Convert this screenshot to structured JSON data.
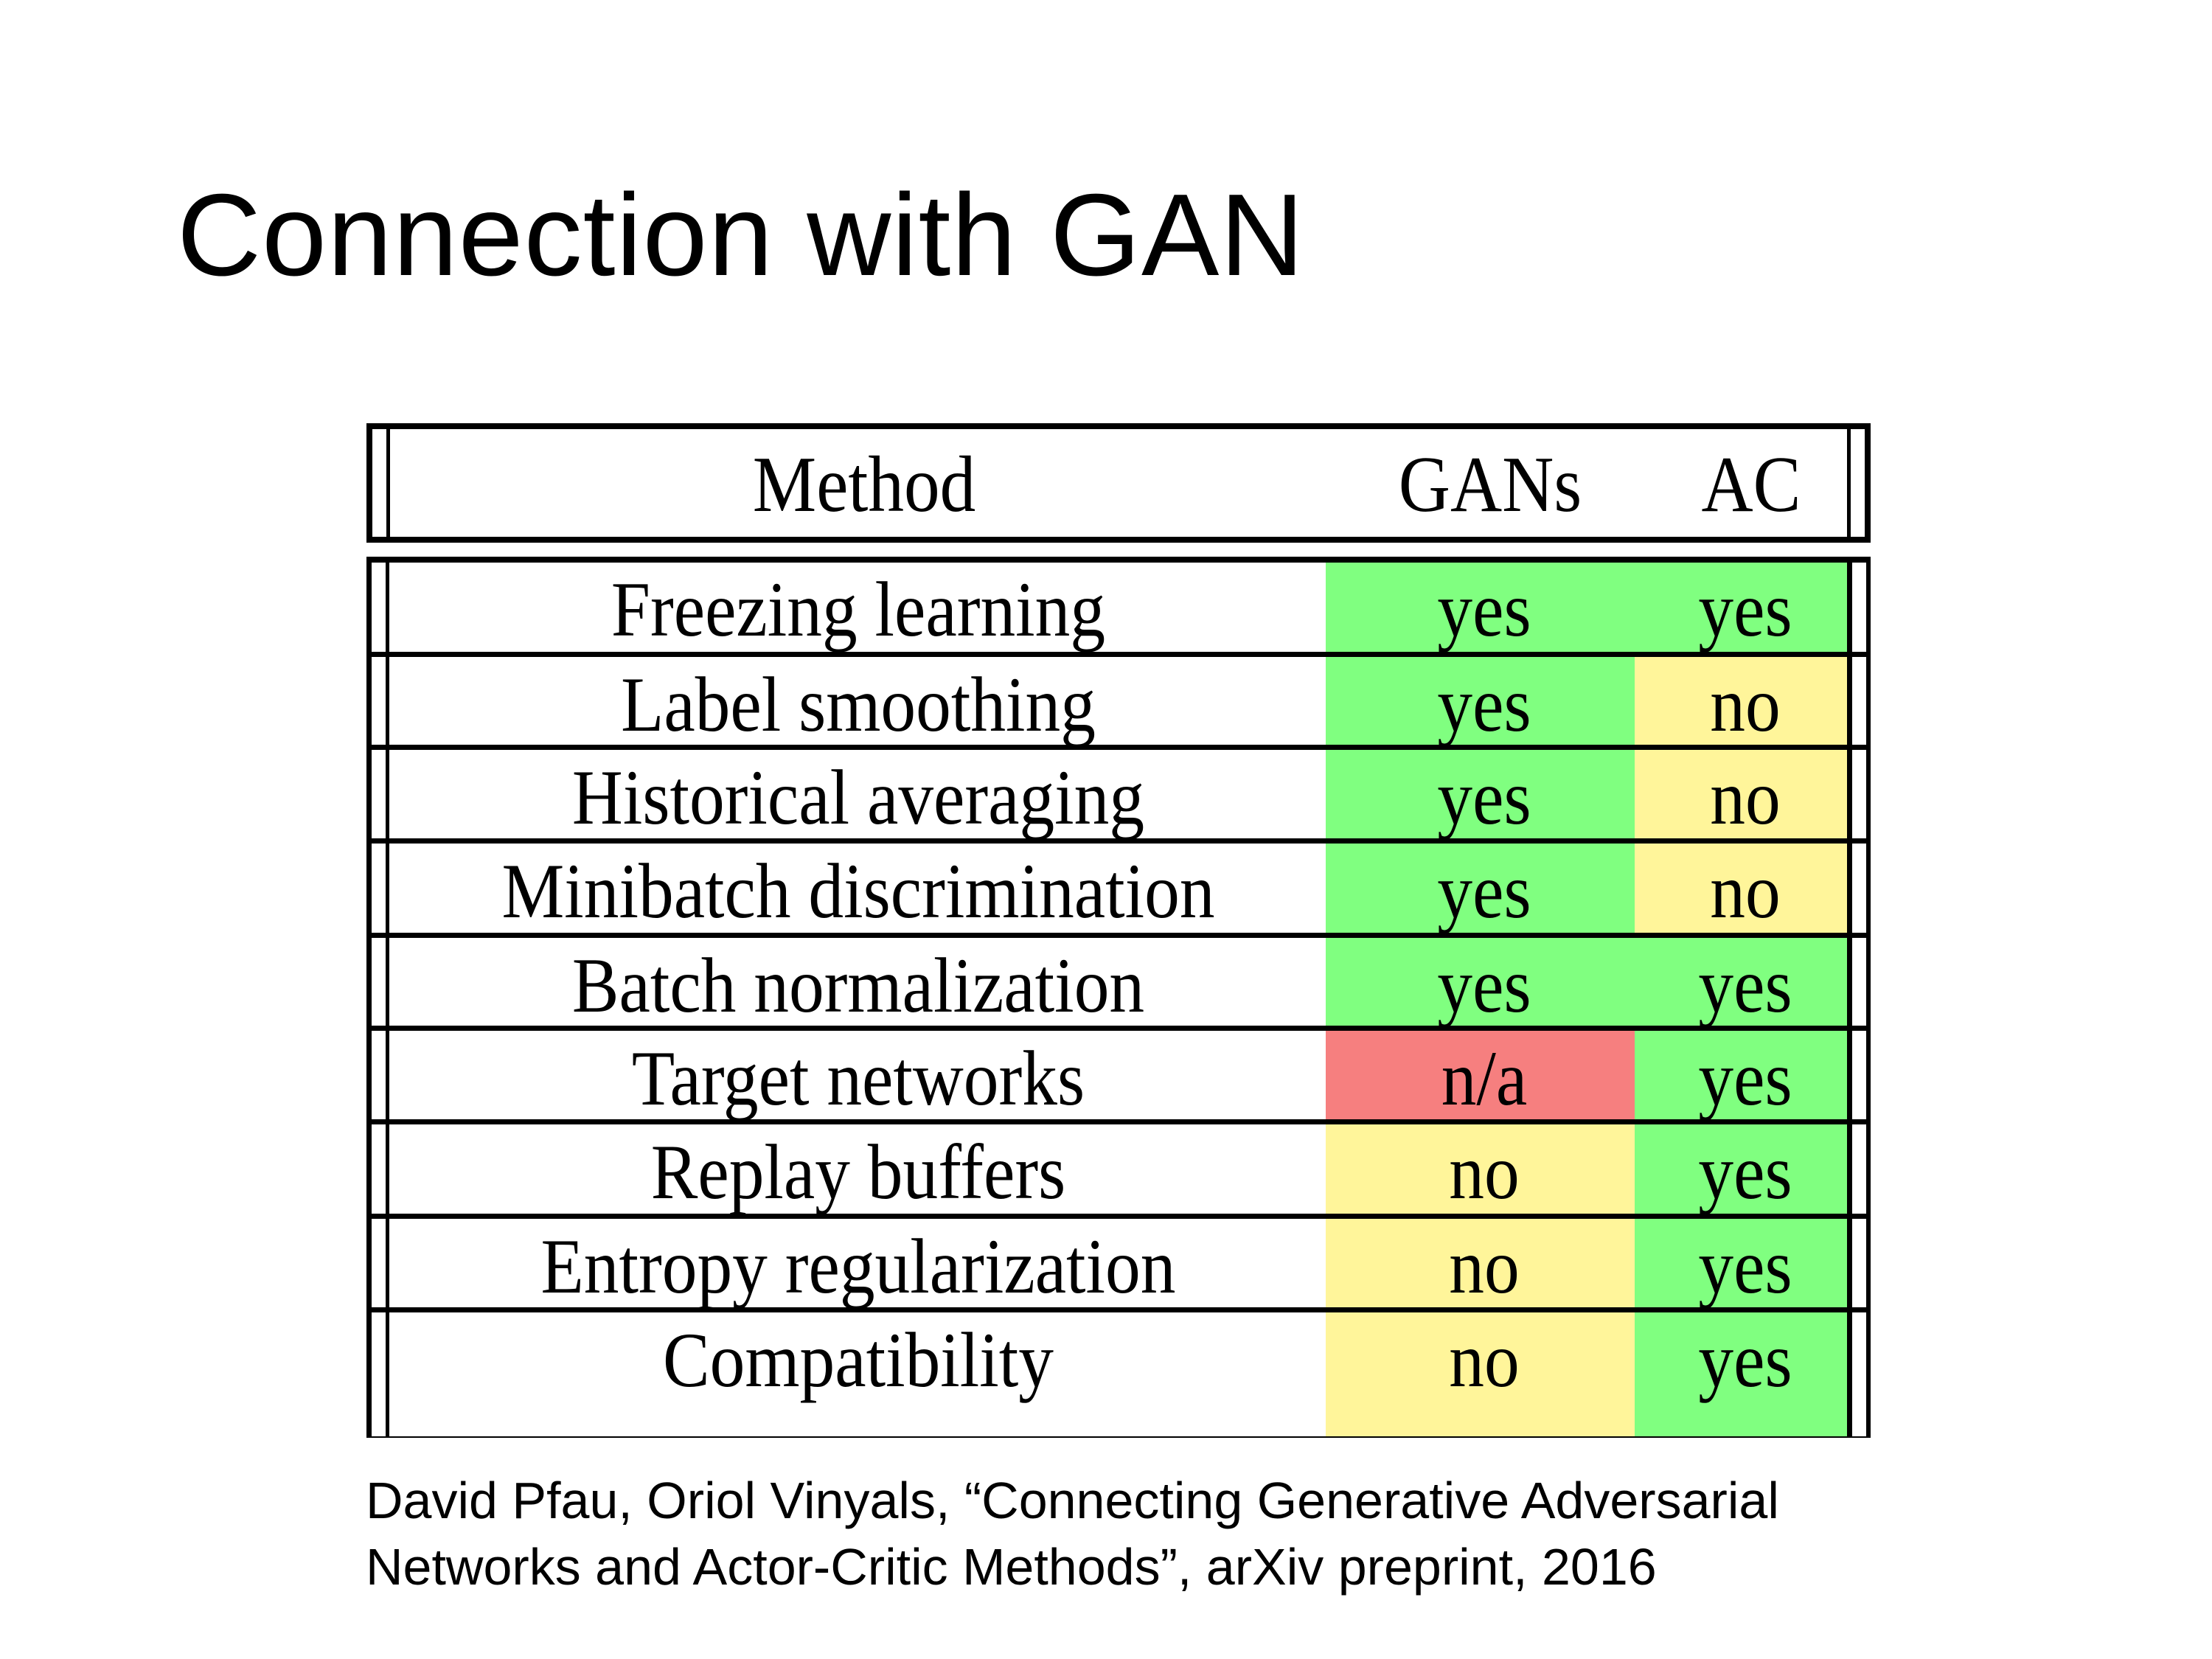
{
  "title": "Connection with GAN",
  "table": {
    "headers": [
      "Method",
      "GANs",
      "AC"
    ],
    "rows": [
      {
        "method": "Freezing learning",
        "gans": "yes",
        "ac": "yes"
      },
      {
        "method": "Label smoothing",
        "gans": "yes",
        "ac": "no"
      },
      {
        "method": "Historical averaging",
        "gans": "yes",
        "ac": "no"
      },
      {
        "method": "Minibatch discrimination",
        "gans": "yes",
        "ac": "no"
      },
      {
        "method": "Batch normalization",
        "gans": "yes",
        "ac": "yes"
      },
      {
        "method": "Target networks",
        "gans": "n/a",
        "ac": "yes"
      },
      {
        "method": "Replay buffers",
        "gans": "no",
        "ac": "yes"
      },
      {
        "method": "Entropy regularization",
        "gans": "no",
        "ac": "yes"
      },
      {
        "method": "Compatibility",
        "gans": "no",
        "ac": "yes"
      }
    ],
    "colors": {
      "yes": "#80ff80",
      "no": "#fff59a",
      "n/a": "#f67f7f"
    }
  },
  "citation": {
    "line1": "David Pfau, Oriol Vinyals, “Connecting Generative Adversarial",
    "line2": "Networks and Actor-Critic Methods”, arXiv preprint, 2016"
  }
}
